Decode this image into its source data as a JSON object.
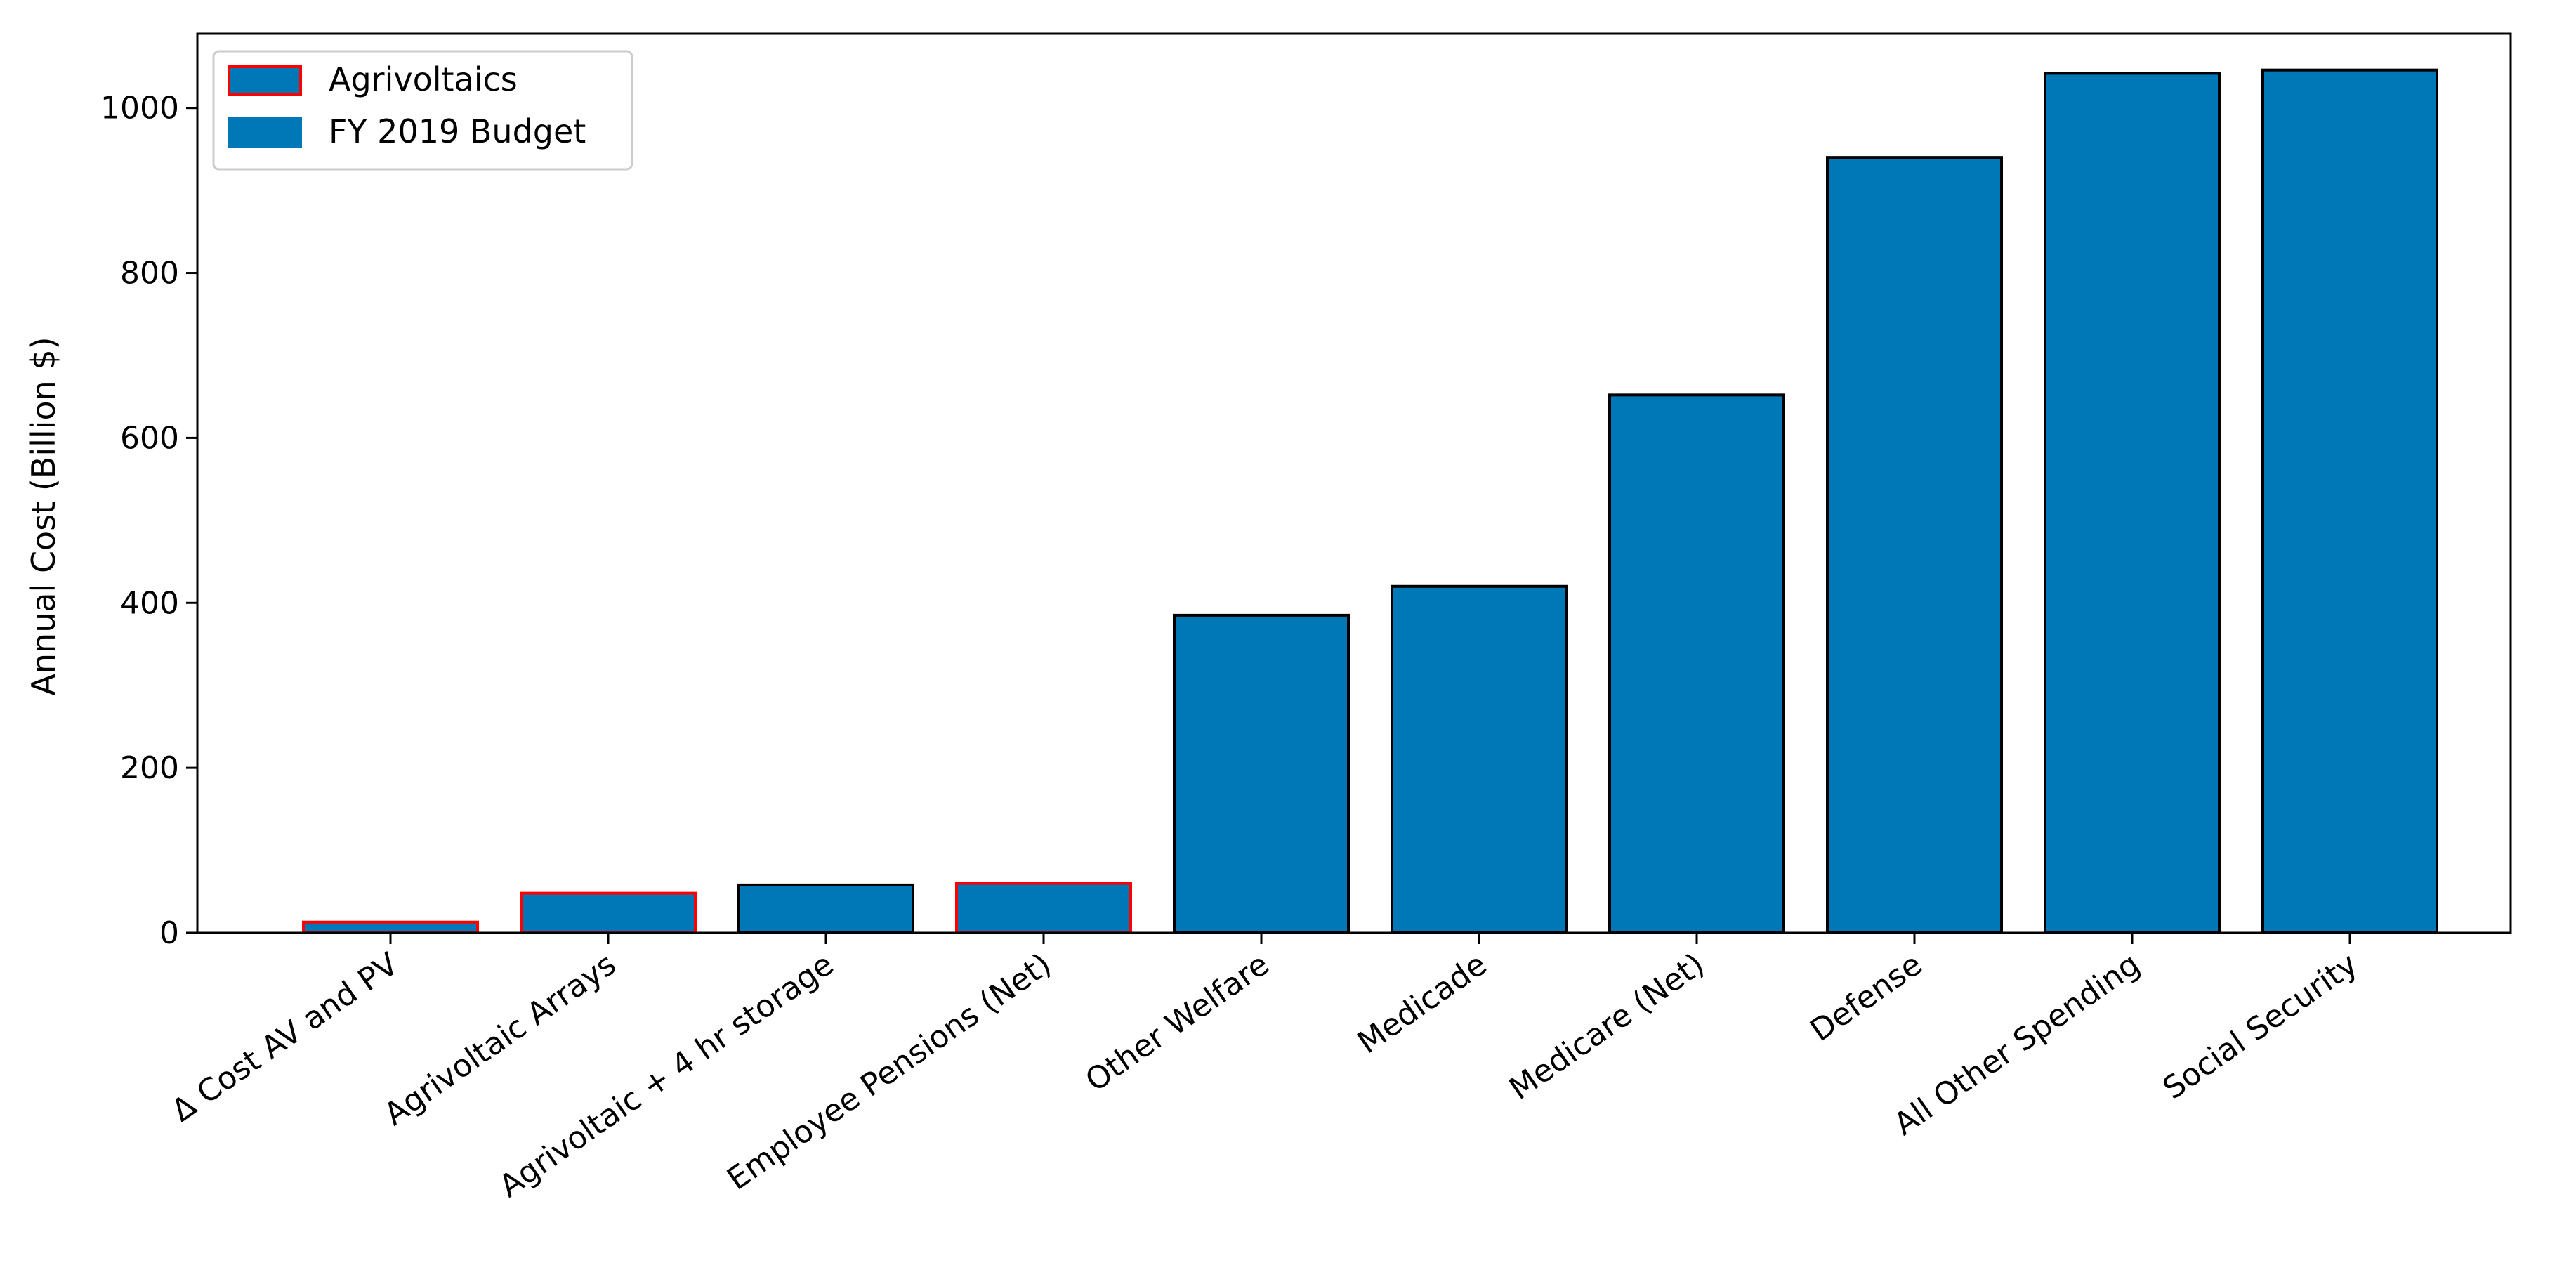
{
  "chart_data": {
    "type": "bar",
    "categories": [
      "Δ Cost AV and PV",
      "Agrivoltaic Arrays",
      "Agrivoltaic + 4 hr storage",
      "Employee Pensions (Net)",
      "Other Welfare",
      "Medicade",
      "Medicare (Net)",
      "Defense",
      "All Other Spending",
      "Social Security"
    ],
    "values": [
      13,
      48,
      58,
      60,
      385,
      420,
      652,
      940,
      1042,
      1046
    ],
    "groups": [
      "Agrivoltaics",
      "Agrivoltaics",
      "FY 2019 Budget",
      "Agrivoltaics",
      "FY 2019 Budget",
      "FY 2019 Budget",
      "FY 2019 Budget",
      "FY 2019 Budget",
      "FY 2019 Budget",
      "FY 2019 Budget"
    ],
    "title": "",
    "xlabel": "",
    "ylabel": "Annual Cost (Billion $)",
    "ylim": [
      0,
      1090
    ],
    "yticks": [
      0,
      200,
      400,
      600,
      800,
      1000
    ],
    "grid": false,
    "legend": {
      "placement": "top-left",
      "entries": [
        {
          "name": "Agrivoltaics",
          "fill": "#0077b6",
          "edge": "#ff0000"
        },
        {
          "name": "FY 2019 Budget",
          "fill": "#0077b6",
          "edge": "#0077b6"
        }
      ]
    },
    "colors": {
      "bar_fill": "#0077b6",
      "agrivoltaics_edge": "#ff0000",
      "budget_edge": "#000000"
    }
  }
}
